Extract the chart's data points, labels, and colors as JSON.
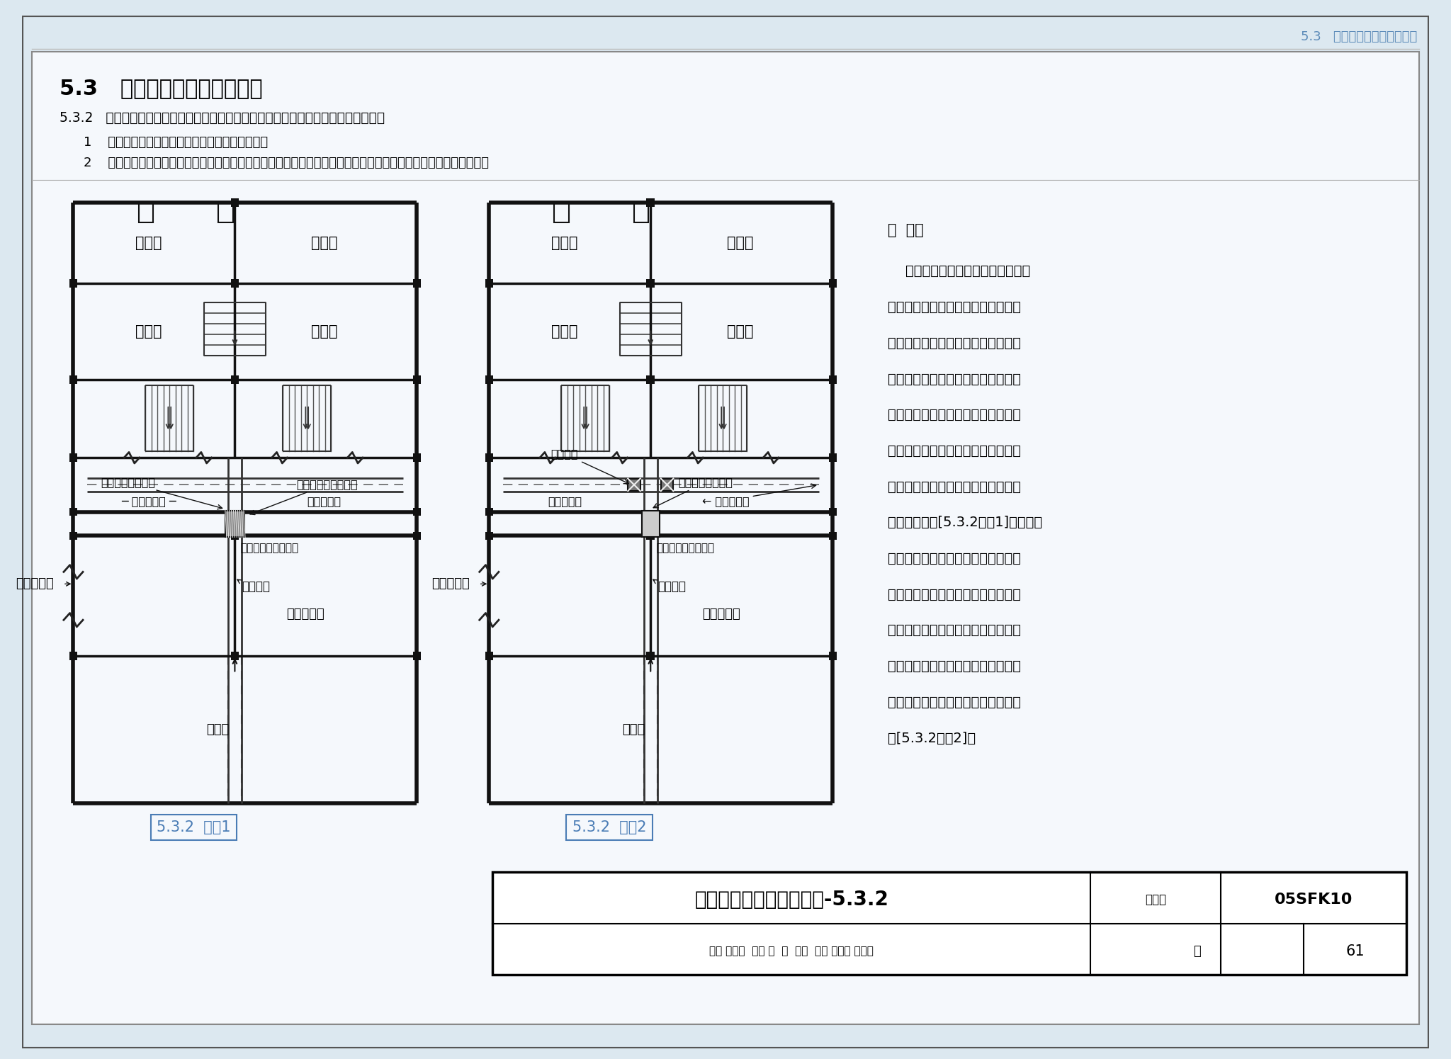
{
  "bg_color": "#dce8f0",
  "page_bg": "#f0f4f8",
  "inner_bg": "#ffffff",
  "header_text": "5.3   平战结合及平战功能转换",
  "header_color": "#5b8ab8",
  "title_h1": "5.3   平战结合及平战功能转换",
  "subtitle": "5.3.2   防空地下室两个以上防护单元平时合并设置一套通风系统时，应符合下列要求：",
  "item1": "1    必须确保战时每个防护单元有独立的通风系统；",
  "item2": "2    临战转换时应保证两个防护单元之间密闭隔墙上的平时通风管、孔在规定时间内实施封堵，并符合战时防护要求。",
  "caption1": "5.3.2  图示1",
  "caption2": "5.3.2  图示2",
  "caption_color": "#4a7cb5",
  "note_title": "说  明：",
  "note_lines": [
    "    图中的防空地下室战时为二个防护",
    "单元，平时通风管道穿过两个防护单",
    "元的密闭隔墙，临战转换时两个防护",
    "单元之间密闭隔墙上的平时通风管封",
    "堵方法有二种。方法一是平时预埋密",
    "闭套管，平时风管从套管中通过，临",
    "战时拆除平时风管，用防护密闭盖板",
    "封堵孔洞，见[5.3.2图示1]；方法二",
    "主要是针对圆形通风管，平时预埋密",
    "闭短管，平时风管与预埋密闭短管法",
    "兰连接，临战拆下平时风管，两侧加",
    "装密闭阀门，并将阀门关闭，也可平",
    "时两侧就装好密闭阀门，战时关闭，",
    "见[5.3.2图示2]。"
  ],
  "bottom_main_title": "平战结合及平战功能转换-5.3.2",
  "bottom_label1": "图集号",
  "bottom_code": "05SFK10",
  "bottom_review": "审核",
  "bottom_review_sig": "耿世彬",
  "bottom_check": "校对",
  "bottom_check_sig": "兑  勇",
  "bottom_extra_sig": "龙多",
  "bottom_design": "设计",
  "bottom_design_sig": "马吉民 马连庆",
  "bottom_page_label": "页",
  "bottom_page_num": "61"
}
